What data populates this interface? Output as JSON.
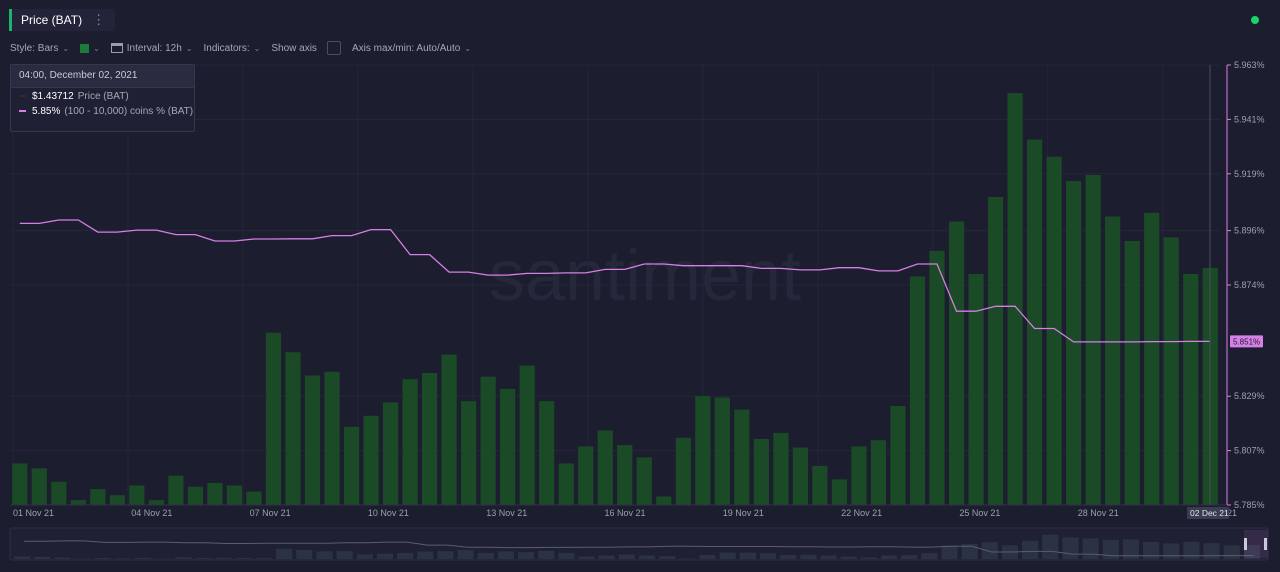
{
  "header": {
    "title": "Price (BAT)",
    "menu_icon": "more-vertical-icon",
    "live_status_color": "#19d46a"
  },
  "toolbar": {
    "style_label": "Style: Bars",
    "color_swatch": "#1c7a3a",
    "interval_label": "Interval: 12h",
    "indicators_label": "Indicators:",
    "show_axis_label": "Show axis",
    "axis_maxmin_label": "Axis max/min: Auto/Auto"
  },
  "tooltip": {
    "date": "04:00, December 02, 2021",
    "price_value": "$1.43712",
    "price_label": "Price (BAT)",
    "coins_value": "5.85%",
    "coins_label": "(100 - 10,000) coins % (BAT)"
  },
  "watermark": "santiment",
  "current_label": "5.851%",
  "current_date_label": "02 Dec 21",
  "colors": {
    "bars": "#1a4a26",
    "line": "#d67fe6",
    "background": "#1c1d2e"
  },
  "chart_data": {
    "type": "bar",
    "series": [
      {
        "name": "Price (BAT)",
        "type": "bar",
        "values": [
          3.4,
          3.0,
          1.9,
          0.4,
          1.3,
          0.8,
          1.6,
          0.4,
          2.4,
          1.5,
          1.8,
          1.6,
          1.1,
          14.1,
          12.5,
          10.6,
          10.9,
          6.4,
          7.3,
          8.4,
          10.3,
          10.8,
          12.3,
          8.5,
          10.5,
          9.5,
          11.4,
          8.5,
          3.4,
          4.8,
          6.1,
          4.9,
          3.9,
          0.7,
          5.5,
          8.9,
          8.8,
          7.8,
          5.4,
          5.9,
          4.7,
          3.2,
          2.1,
          4.8,
          5.3,
          8.1,
          18.7,
          20.8,
          23.2,
          18.9,
          25.2,
          33.7,
          29.9,
          28.5,
          26.5,
          27.0,
          23.6,
          21.6,
          23.9,
          21.9,
          18.9,
          19.4
        ]
      },
      {
        "name": "(100 - 10,000) coins % (BAT)",
        "type": "line",
        "values": [
          5.8989,
          5.8989,
          5.9003,
          5.9003,
          5.8954,
          5.8954,
          5.8962,
          5.8962,
          5.8944,
          5.8944,
          5.8918,
          5.8918,
          5.8926,
          5.8926,
          5.8927,
          5.8927,
          5.894,
          5.894,
          5.8964,
          5.8964,
          5.8863,
          5.8863,
          5.8792,
          5.8792,
          5.878,
          5.878,
          5.8787,
          5.8787,
          5.8789,
          5.8789,
          5.8803,
          5.8803,
          5.8825,
          5.8825,
          5.8818,
          5.8818,
          5.8818,
          5.8818,
          5.8807,
          5.8807,
          5.8801,
          5.8801,
          5.881,
          5.881,
          5.8797,
          5.8797,
          5.8825,
          5.8825,
          5.8634,
          5.8634,
          5.8654,
          5.8654,
          5.8564,
          5.8564,
          5.851,
          5.851,
          5.851,
          5.851,
          5.8511,
          5.8511,
          5.8512,
          5.8512
        ]
      }
    ],
    "x_ticks": [
      "01 Nov 21",
      "04 Nov 21",
      "07 Nov 21",
      "10 Nov 21",
      "13 Nov 21",
      "16 Nov 21",
      "19 Nov 21",
      "22 Nov 21",
      "25 Nov 21",
      "28 Nov 21",
      "01 Dec 21"
    ],
    "y_ticks": [
      "5.963%",
      "5.941%",
      "5.919%",
      "5.896%",
      "5.874%",
      "5.829%",
      "5.807%",
      "5.785%"
    ],
    "ylim": [
      5.785,
      5.963
    ]
  }
}
